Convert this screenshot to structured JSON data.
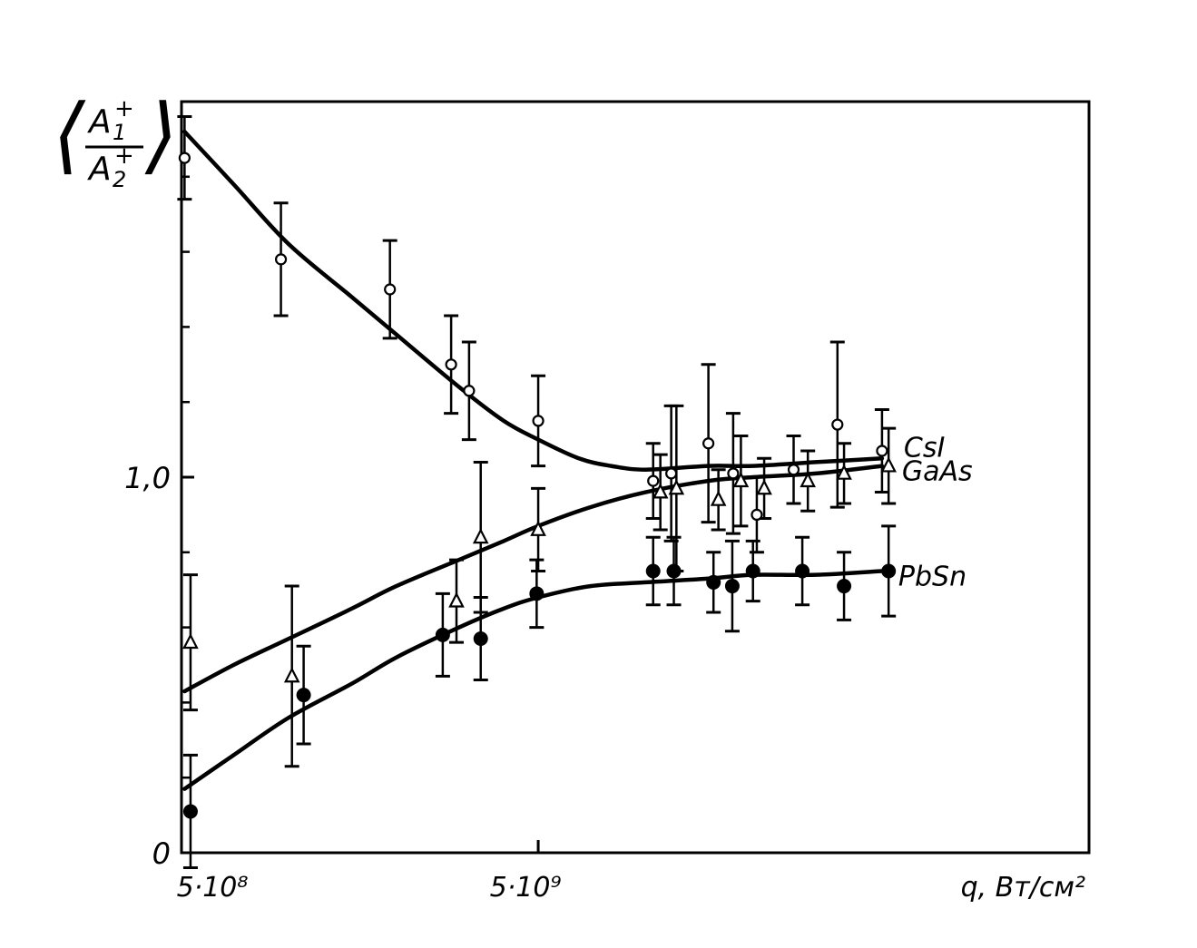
{
  "chart_data": {
    "type": "scatter",
    "title": "",
    "ylabel": {
      "left_bracket": "⟨",
      "right_bracket": "⟩",
      "numerator": "A",
      "numerator_sub": "1",
      "denominator": "A",
      "denominator_sub": "2",
      "sup": "+"
    },
    "xlabel": "q, Вт/см²",
    "x_scale": "log",
    "xlim": [
      500000000.0,
      175000000000.0
    ],
    "ylim": [
      0,
      2.0
    ],
    "x_ticks": [
      {
        "value": 500000000.0,
        "label": "5·10⁸"
      },
      {
        "value": 5000000000.0,
        "label": "5·10⁹"
      }
    ],
    "y_ticks": [
      {
        "value": 0,
        "label": "0"
      },
      {
        "value": 1.0,
        "label": "1,0"
      }
    ],
    "y_minor_ticks": [
      0.2,
      0.4,
      0.6,
      0.8,
      1.2,
      1.4,
      1.6,
      1.8
    ],
    "series": [
      {
        "name": "CsI",
        "marker": "circle-open",
        "points": [
          {
            "x": 510000000.0,
            "y": 1.85,
            "err": 0.11
          },
          {
            "x": 950000000.0,
            "y": 1.58,
            "err": 0.15
          },
          {
            "x": 1920000000.0,
            "y": 1.5,
            "err": 0.13
          },
          {
            "x": 2850000000.0,
            "y": 1.3,
            "err": 0.13
          },
          {
            "x": 3200000000.0,
            "y": 1.23,
            "err": 0.13
          },
          {
            "x": 5000000000.0,
            "y": 1.15,
            "err": 0.12
          },
          {
            "x": 10500000000.0,
            "y": 0.99,
            "err": 0.1
          },
          {
            "x": 11800000000.0,
            "y": 1.01,
            "err": 0.18
          },
          {
            "x": 15000000000.0,
            "y": 1.09,
            "err": 0.21
          },
          {
            "x": 17600000000.0,
            "y": 1.01,
            "err": 0.16
          },
          {
            "x": 20500000000.0,
            "y": 0.9,
            "err": 0.1
          },
          {
            "x": 26000000000.0,
            "y": 1.02,
            "err": 0.09
          },
          {
            "x": 34500000000.0,
            "y": 1.14,
            "err": 0.22
          },
          {
            "x": 46000000000.0,
            "y": 1.07,
            "err": 0.11
          }
        ],
        "fit": [
          {
            "x": 510000000.0,
            "y": 1.92
          },
          {
            "x": 700000000.0,
            "y": 1.78
          },
          {
            "x": 1000000000.0,
            "y": 1.62
          },
          {
            "x": 1500000000.0,
            "y": 1.48
          },
          {
            "x": 2000000000.0,
            "y": 1.38
          },
          {
            "x": 3000000000.0,
            "y": 1.24
          },
          {
            "x": 4000000000.0,
            "y": 1.15
          },
          {
            "x": 5000000000.0,
            "y": 1.1
          },
          {
            "x": 6500000000.0,
            "y": 1.05
          },
          {
            "x": 8000000000.0,
            "y": 1.03
          },
          {
            "x": 10000000000.0,
            "y": 1.02
          },
          {
            "x": 15000000000.0,
            "y": 1.03
          },
          {
            "x": 20000000000.0,
            "y": 1.03
          },
          {
            "x": 30000000000.0,
            "y": 1.04
          },
          {
            "x": 46000000000.0,
            "y": 1.05
          }
        ]
      },
      {
        "name": "GaAs",
        "marker": "triangle-open",
        "points": [
          {
            "x": 530000000.0,
            "y": 0.56,
            "err": 0.18
          },
          {
            "x": 1020000000.0,
            "y": 0.47,
            "err": 0.24
          },
          {
            "x": 2950000000.0,
            "y": 0.67,
            "err": 0.11
          },
          {
            "x": 3450000000.0,
            "y": 0.84,
            "err": 0.2
          },
          {
            "x": 5000000000.0,
            "y": 0.86,
            "err": 0.11
          },
          {
            "x": 11000000000.0,
            "y": 0.96,
            "err": 0.1
          },
          {
            "x": 12200000000.0,
            "y": 0.97,
            "err": 0.22
          },
          {
            "x": 16000000000.0,
            "y": 0.94,
            "err": 0.08
          },
          {
            "x": 18500000000.0,
            "y": 0.99,
            "err": 0.12
          },
          {
            "x": 21500000000.0,
            "y": 0.97,
            "err": 0.08
          },
          {
            "x": 28500000000.0,
            "y": 0.99,
            "err": 0.08
          },
          {
            "x": 36000000000.0,
            "y": 1.01,
            "err": 0.08
          },
          {
            "x": 48000000000.0,
            "y": 1.03,
            "err": 0.1
          }
        ],
        "fit": [
          {
            "x": 510000000.0,
            "y": 0.43
          },
          {
            "x": 700000000.0,
            "y": 0.5
          },
          {
            "x": 1000000000.0,
            "y": 0.57
          },
          {
            "x": 1500000000.0,
            "y": 0.65
          },
          {
            "x": 2000000000.0,
            "y": 0.71
          },
          {
            "x": 3000000000.0,
            "y": 0.78
          },
          {
            "x": 4000000000.0,
            "y": 0.83
          },
          {
            "x": 5000000000.0,
            "y": 0.87
          },
          {
            "x": 7000000000.0,
            "y": 0.92
          },
          {
            "x": 10000000000.0,
            "y": 0.96
          },
          {
            "x": 15000000000.0,
            "y": 0.99
          },
          {
            "x": 20000000000.0,
            "y": 1.0
          },
          {
            "x": 30000000000.0,
            "y": 1.01
          },
          {
            "x": 46000000000.0,
            "y": 1.03
          }
        ]
      },
      {
        "name": "PbSn",
        "marker": "circle-filled",
        "points": [
          {
            "x": 530000000.0,
            "y": 0.11,
            "err": 0.15
          },
          {
            "x": 1100000000.0,
            "y": 0.42,
            "err": 0.13
          },
          {
            "x": 2700000000.0,
            "y": 0.58,
            "err": 0.11
          },
          {
            "x": 3450000000.0,
            "y": 0.57,
            "err": 0.11
          },
          {
            "x": 4950000000.0,
            "y": 0.69,
            "err": 0.09
          },
          {
            "x": 10500000000.0,
            "y": 0.75,
            "err": 0.09
          },
          {
            "x": 12000000000.0,
            "y": 0.75,
            "err": 0.09
          },
          {
            "x": 15500000000.0,
            "y": 0.72,
            "err": 0.08
          },
          {
            "x": 17500000000.0,
            "y": 0.71,
            "err": 0.12
          },
          {
            "x": 20000000000.0,
            "y": 0.75,
            "err": 0.08
          },
          {
            "x": 27500000000.0,
            "y": 0.75,
            "err": 0.09
          },
          {
            "x": 36000000000.0,
            "y": 0.71,
            "err": 0.09
          },
          {
            "x": 48000000000.0,
            "y": 0.75,
            "err": 0.12
          }
        ],
        "fit": [
          {
            "x": 510000000.0,
            "y": 0.17
          },
          {
            "x": 700000000.0,
            "y": 0.26
          },
          {
            "x": 1000000000.0,
            "y": 0.36
          },
          {
            "x": 1500000000.0,
            "y": 0.45
          },
          {
            "x": 2000000000.0,
            "y": 0.52
          },
          {
            "x": 3000000000.0,
            "y": 0.6
          },
          {
            "x": 4000000000.0,
            "y": 0.65
          },
          {
            "x": 5000000000.0,
            "y": 0.68
          },
          {
            "x": 7000000000.0,
            "y": 0.71
          },
          {
            "x": 10000000000.0,
            "y": 0.72
          },
          {
            "x": 15000000000.0,
            "y": 0.73
          },
          {
            "x": 20000000000.0,
            "y": 0.74
          },
          {
            "x": 30000000000.0,
            "y": 0.74
          },
          {
            "x": 46000000000.0,
            "y": 0.75
          }
        ]
      }
    ]
  }
}
